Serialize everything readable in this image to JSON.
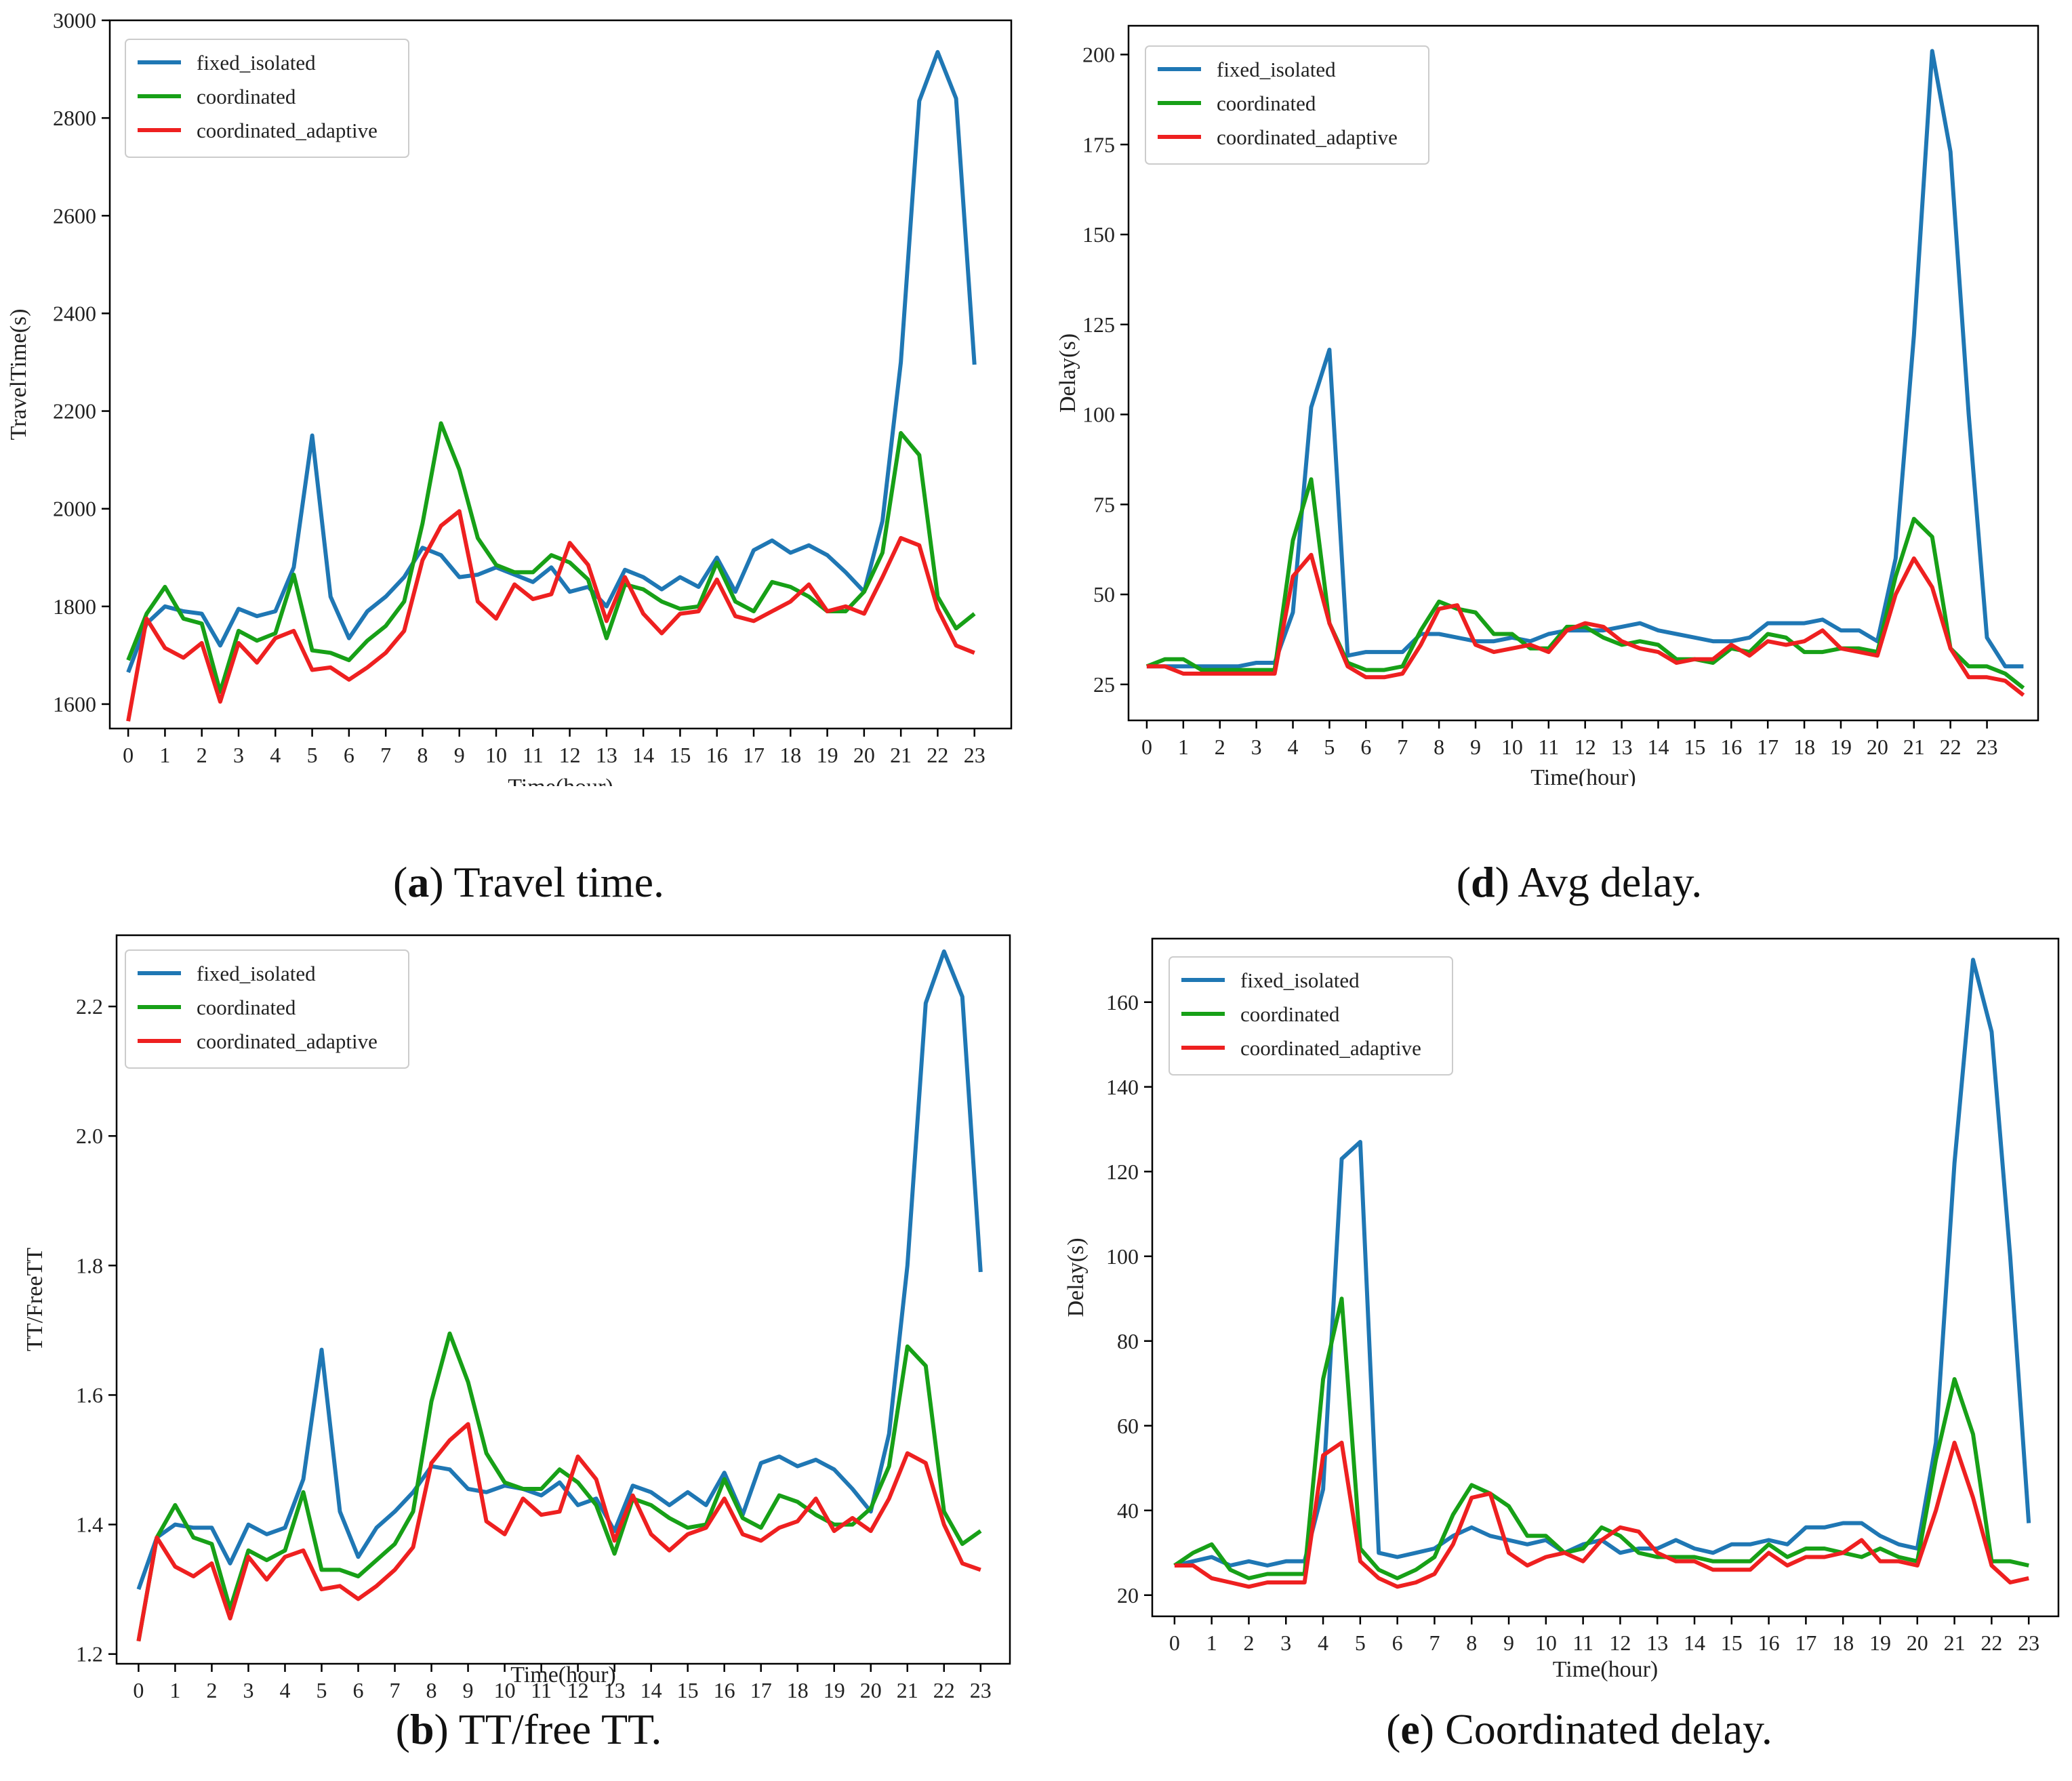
{
  "colors": {
    "fixed_isolated": "#1f77b4",
    "coordinated": "#17a017",
    "coordinated_adaptive": "#ee2020",
    "axis": "#000000"
  },
  "captions": [
    {
      "letter": "a",
      "text": "Travel time."
    },
    {
      "letter": "d",
      "text": "Avg delay."
    },
    {
      "letter": "b",
      "text": "TT/free TT."
    },
    {
      "letter": "e",
      "text": "Coordinated delay."
    }
  ],
  "chart_data": [
    {
      "id": "a",
      "type": "line",
      "title": "",
      "xlabel": "Time(hour)",
      "ylabel": "TravelTime(s)",
      "xlim": [
        -0.5,
        24.0
      ],
      "ylim": [
        1550,
        3000
      ],
      "yticks": [
        1600,
        1800,
        2000,
        2200,
        2400,
        2600,
        2800,
        3000
      ],
      "ytick_labels": [
        "1600",
        "1800",
        "2000",
        "2200",
        "2400",
        "2600",
        "2800",
        "3000"
      ],
      "xticks": [
        0,
        1,
        2,
        3,
        4,
        5,
        6,
        7,
        8,
        9,
        10,
        11,
        12,
        13,
        14,
        15,
        16,
        17,
        18,
        19,
        20,
        21,
        22,
        23
      ],
      "xtick_labels": [
        "0",
        "1",
        "2",
        "3",
        "4",
        "5",
        "6",
        "7",
        "8",
        "9",
        "10",
        "11",
        "12",
        "13",
        "14",
        "15",
        "16",
        "17",
        "18",
        "19",
        "20",
        "21",
        "22",
        "23"
      ],
      "legend": "top-left",
      "x": [
        0,
        0.5,
        1,
        1.5,
        2,
        2.5,
        3,
        3.5,
        4,
        4.5,
        5,
        5.5,
        6,
        6.5,
        7,
        7.5,
        8,
        8.5,
        9,
        9.5,
        10,
        10.5,
        11,
        11.5,
        12,
        12.5,
        13,
        13.5,
        14,
        14.5,
        15,
        15.5,
        16,
        16.5,
        17,
        17.5,
        18,
        18.5,
        19,
        19.5,
        20,
        20.5,
        21,
        21.5,
        22,
        22.5,
        23
      ],
      "series": [
        {
          "name": "fixed_isolated",
          "values": [
            1665,
            1765,
            1800,
            1790,
            1785,
            1720,
            1795,
            1780,
            1790,
            1880,
            2150,
            1820,
            1735,
            1790,
            1820,
            1860,
            1920,
            1905,
            1860,
            1865,
            1880,
            1865,
            1850,
            1880,
            1830,
            1840,
            1800,
            1875,
            1860,
            1835,
            1860,
            1840,
            1900,
            1830,
            1915,
            1935,
            1910,
            1925,
            1905,
            1870,
            1830,
            1975,
            2300,
            2835,
            2935,
            2840,
            2295
          ]
        },
        {
          "name": "coordinated",
          "values": [
            1690,
            1785,
            1840,
            1775,
            1765,
            1625,
            1750,
            1730,
            1745,
            1865,
            1710,
            1705,
            1690,
            1730,
            1760,
            1810,
            1970,
            2175,
            2080,
            1940,
            1885,
            1870,
            1870,
            1905,
            1890,
            1855,
            1735,
            1845,
            1835,
            1810,
            1795,
            1800,
            1890,
            1810,
            1790,
            1850,
            1840,
            1820,
            1790,
            1790,
            1830,
            1910,
            2155,
            2110,
            1820,
            1755,
            1785
          ]
        },
        {
          "name": "coordinated_adaptive",
          "values": [
            1565,
            1775,
            1715,
            1695,
            1725,
            1605,
            1725,
            1685,
            1735,
            1750,
            1670,
            1675,
            1650,
            1675,
            1705,
            1750,
            1895,
            1965,
            1995,
            1810,
            1775,
            1845,
            1815,
            1825,
            1930,
            1885,
            1770,
            1860,
            1785,
            1745,
            1785,
            1790,
            1855,
            1780,
            1770,
            1790,
            1810,
            1845,
            1790,
            1800,
            1785,
            1860,
            1940,
            1925,
            1795,
            1720,
            1705
          ]
        }
      ]
    },
    {
      "id": "d",
      "type": "line",
      "title": "",
      "xlabel": "Time(hour)",
      "ylabel": "Delay(s)",
      "xlim": [
        -0.5,
        24.4
      ],
      "ylim": [
        15,
        208
      ],
      "yticks": [
        25,
        50,
        75,
        100,
        125,
        150,
        175,
        200
      ],
      "ytick_labels": [
        "25",
        "50",
        "75",
        "100",
        "125",
        "150",
        "175",
        "200"
      ],
      "xticks": [
        0,
        1,
        2,
        3,
        4,
        5,
        6,
        7,
        8,
        9,
        10,
        11,
        12,
        13,
        14,
        15,
        16,
        17,
        18,
        19,
        20,
        21,
        22,
        23
      ],
      "xtick_labels": [
        "0",
        "1",
        "2",
        "3",
        "4",
        "5",
        "6",
        "7",
        "8",
        "9",
        "10",
        "11",
        "12",
        "13",
        "14",
        "15",
        "16",
        "17",
        "18",
        "19",
        "20",
        "21",
        "22",
        "23"
      ],
      "legend": "top-left",
      "x": [
        0,
        0.5,
        1,
        1.5,
        2,
        2.5,
        3,
        3.5,
        4,
        4.5,
        5,
        5.5,
        6,
        6.5,
        7,
        7.5,
        8,
        8.5,
        9,
        9.5,
        10,
        10.5,
        11,
        11.5,
        12,
        12.5,
        13,
        13.5,
        14,
        14.5,
        15,
        15.5,
        16,
        16.5,
        17,
        17.5,
        18,
        18.5,
        19,
        19.5,
        20,
        20.5,
        21,
        21.5,
        22,
        22.5,
        23,
        23.5,
        24
      ],
      "series": [
        {
          "name": "fixed_isolated",
          "values": [
            30,
            30,
            30,
            30,
            30,
            30,
            31,
            31,
            45,
            102,
            118,
            33,
            34,
            34,
            34,
            39,
            39,
            38,
            37,
            37,
            38,
            37,
            39,
            40,
            40,
            40,
            41,
            42,
            40,
            39,
            38,
            37,
            37,
            38,
            42,
            42,
            42,
            43,
            40,
            40,
            37,
            60,
            122,
            201,
            173,
            100,
            38,
            30,
            30
          ]
        },
        {
          "name": "coordinated",
          "values": [
            30,
            32,
            32,
            29,
            29,
            29,
            29,
            29,
            65,
            82,
            42,
            31,
            29,
            29,
            30,
            40,
            48,
            46,
            45,
            39,
            39,
            35,
            35,
            41,
            41,
            38,
            36,
            37,
            36,
            32,
            32,
            31,
            35,
            34,
            39,
            38,
            34,
            34,
            35,
            35,
            34,
            55,
            71,
            66,
            35,
            30,
            30,
            28,
            24
          ]
        },
        {
          "name": "coordinated_adaptive",
          "values": [
            30,
            30,
            28,
            28,
            28,
            28,
            28,
            28,
            55,
            61,
            42,
            30,
            27,
            27,
            28,
            36,
            46,
            47,
            36,
            34,
            35,
            36,
            34,
            40,
            42,
            41,
            37,
            35,
            34,
            31,
            32,
            32,
            36,
            33,
            37,
            36,
            37,
            40,
            35,
            34,
            33,
            50,
            60,
            52,
            35,
            27,
            27,
            26,
            22
          ]
        }
      ]
    },
    {
      "id": "b",
      "type": "line",
      "title": "",
      "xlabel": "Time(hour)",
      "ylabel": "TT/FreeTT",
      "xlim": [
        -0.6,
        23.8
      ],
      "ylim": [
        1.185,
        2.31
      ],
      "yticks": [
        1.2,
        1.4,
        1.6,
        1.8,
        2.0,
        2.2
      ],
      "ytick_labels": [
        "1.2",
        "1.4",
        "1.6",
        "1.8",
        "2.0",
        "2.2"
      ],
      "xticks": [
        0,
        1,
        2,
        3,
        4,
        5,
        6,
        7,
        8,
        9,
        10,
        11,
        12,
        13,
        14,
        15,
        16,
        17,
        18,
        19,
        20,
        21,
        22,
        23
      ],
      "xtick_labels": [
        "0",
        "1",
        "2",
        "3",
        "4",
        "5",
        "6",
        "7",
        "8",
        "9",
        "10",
        "11",
        "12",
        "13",
        "14",
        "15",
        "16",
        "17",
        "18",
        "19",
        "20",
        "21",
        "22",
        "23"
      ],
      "legend": "top-left",
      "x": [
        0,
        0.5,
        1,
        1.5,
        2,
        2.5,
        3,
        3.5,
        4,
        4.5,
        5,
        5.5,
        6,
        6.5,
        7,
        7.5,
        8,
        8.5,
        9,
        9.5,
        10,
        10.5,
        11,
        11.5,
        12,
        12.5,
        13,
        13.5,
        14,
        14.5,
        15,
        15.5,
        16,
        16.5,
        17,
        17.5,
        18,
        18.5,
        19,
        19.5,
        20,
        20.5,
        21,
        21.5,
        22,
        22.5,
        23
      ],
      "series": [
        {
          "name": "fixed_isolated",
          "values": [
            1.3,
            1.38,
            1.4,
            1.395,
            1.395,
            1.34,
            1.4,
            1.385,
            1.395,
            1.47,
            1.67,
            1.42,
            1.35,
            1.395,
            1.42,
            1.45,
            1.49,
            1.485,
            1.455,
            1.45,
            1.46,
            1.455,
            1.445,
            1.465,
            1.43,
            1.44,
            1.39,
            1.46,
            1.45,
            1.43,
            1.45,
            1.43,
            1.48,
            1.415,
            1.495,
            1.505,
            1.49,
            1.5,
            1.485,
            1.455,
            1.42,
            1.54,
            1.8,
            2.205,
            2.285,
            2.215,
            1.79
          ]
        },
        {
          "name": "coordinated",
          "values": [
            1.22,
            1.38,
            1.43,
            1.38,
            1.37,
            1.27,
            1.36,
            1.345,
            1.36,
            1.45,
            1.33,
            1.33,
            1.32,
            1.345,
            1.37,
            1.42,
            1.59,
            1.695,
            1.62,
            1.51,
            1.465,
            1.455,
            1.455,
            1.485,
            1.465,
            1.43,
            1.355,
            1.44,
            1.43,
            1.41,
            1.395,
            1.4,
            1.47,
            1.41,
            1.395,
            1.445,
            1.435,
            1.415,
            1.4,
            1.4,
            1.425,
            1.49,
            1.675,
            1.645,
            1.42,
            1.37,
            1.39
          ]
        },
        {
          "name": "coordinated_adaptive",
          "values": [
            1.22,
            1.38,
            1.335,
            1.32,
            1.34,
            1.255,
            1.35,
            1.315,
            1.35,
            1.36,
            1.3,
            1.305,
            1.285,
            1.305,
            1.33,
            1.365,
            1.495,
            1.53,
            1.555,
            1.405,
            1.385,
            1.44,
            1.415,
            1.42,
            1.505,
            1.47,
            1.375,
            1.445,
            1.385,
            1.36,
            1.385,
            1.395,
            1.44,
            1.385,
            1.375,
            1.395,
            1.405,
            1.44,
            1.39,
            1.41,
            1.39,
            1.44,
            1.51,
            1.495,
            1.4,
            1.34,
            1.33
          ]
        }
      ]
    },
    {
      "id": "e",
      "type": "line",
      "title": "",
      "xlabel": "Time(hour)",
      "ylabel": "Delay(s)",
      "xlim": [
        -0.6,
        23.8
      ],
      "ylim": [
        15,
        175
      ],
      "yticks": [
        20,
        40,
        60,
        80,
        100,
        120,
        140,
        160
      ],
      "ytick_labels": [
        "20",
        "40",
        "60",
        "80",
        "100",
        "120",
        "140",
        "160"
      ],
      "xticks": [
        0,
        1,
        2,
        3,
        4,
        5,
        6,
        7,
        8,
        9,
        10,
        11,
        12,
        13,
        14,
        15,
        16,
        17,
        18,
        19,
        20,
        21,
        22,
        23
      ],
      "xtick_labels": [
        "0",
        "1",
        "2",
        "3",
        "4",
        "5",
        "6",
        "7",
        "8",
        "9",
        "10",
        "11",
        "12",
        "13",
        "14",
        "15",
        "16",
        "17",
        "18",
        "19",
        "20",
        "21",
        "22",
        "23"
      ],
      "legend": "top-left",
      "x": [
        0,
        0.5,
        1,
        1.5,
        2,
        2.5,
        3,
        3.5,
        4,
        4.5,
        5,
        5.5,
        6,
        6.5,
        7,
        7.5,
        8,
        8.5,
        9,
        9.5,
        10,
        10.5,
        11,
        11.5,
        12,
        12.5,
        13,
        13.5,
        14,
        14.5,
        15,
        15.5,
        16,
        16.5,
        17,
        17.5,
        18,
        18.5,
        19,
        19.5,
        20,
        20.5,
        21,
        21.5,
        22,
        22.5,
        23
      ],
      "series": [
        {
          "name": "fixed_isolated",
          "values": [
            27,
            28,
            29,
            27,
            28,
            27,
            28,
            28,
            45,
            123,
            127,
            30,
            29,
            30,
            31,
            34,
            36,
            34,
            33,
            32,
            33,
            30,
            32,
            33,
            30,
            31,
            31,
            33,
            31,
            30,
            32,
            32,
            33,
            32,
            36,
            36,
            37,
            37,
            34,
            32,
            31,
            56,
            122,
            170,
            153,
            100,
            37
          ]
        },
        {
          "name": "coordinated",
          "values": [
            27,
            30,
            32,
            26,
            24,
            25,
            25,
            25,
            71,
            90,
            31,
            26,
            24,
            26,
            29,
            39,
            46,
            44,
            41,
            34,
            34,
            30,
            31,
            36,
            34,
            30,
            29,
            29,
            29,
            28,
            28,
            28,
            32,
            29,
            31,
            31,
            30,
            29,
            31,
            29,
            28,
            52,
            71,
            58,
            28,
            28,
            27
          ]
        },
        {
          "name": "coordinated_adaptive",
          "values": [
            27,
            27,
            24,
            23,
            22,
            23,
            23,
            23,
            53,
            56,
            28,
            24,
            22,
            23,
            25,
            32,
            43,
            44,
            30,
            27,
            29,
            30,
            28,
            33,
            36,
            35,
            30,
            28,
            28,
            26,
            26,
            26,
            30,
            27,
            29,
            29,
            30,
            33,
            28,
            28,
            27,
            40,
            56,
            43,
            27,
            23,
            24
          ]
        }
      ]
    }
  ]
}
